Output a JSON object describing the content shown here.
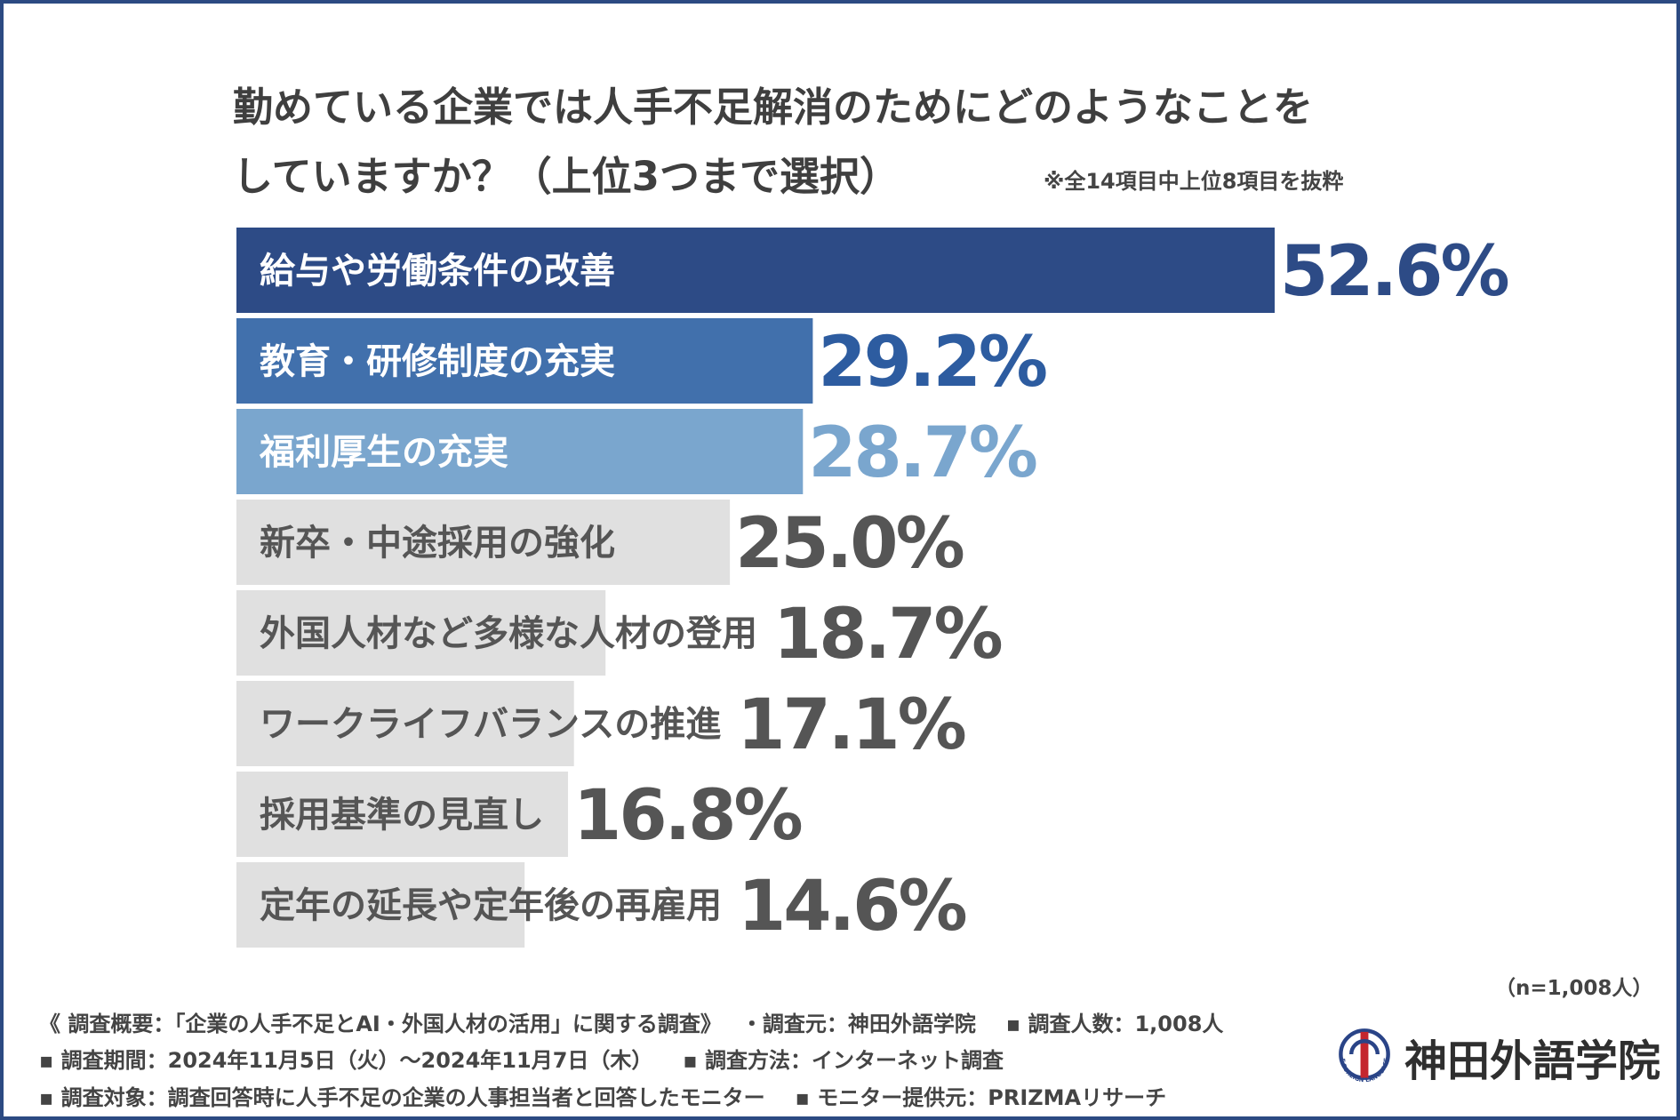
{
  "title": {
    "line1": "勤めている企業では人手不足解消のためにどのようなことを",
    "line2": "していますか？（上位3つまで選択）"
  },
  "note": "※全14項目中上位8項目を抜粋",
  "chart_data": {
    "type": "bar",
    "orientation": "horizontal",
    "title": "勤めている企業では人手不足解消のためにどのようなことをしていますか？（上位3つまで選択）",
    "categories": [
      "給与や労働条件の改善",
      "教育・研修制度の充実",
      "福利厚生の充実",
      "新卒・中途採用の強化",
      "外国人材など多様な人材の登用",
      "ワークライフバランスの推進",
      "採用基準の見直し",
      "定年の延長や定年後の再雇用"
    ],
    "values": [
      52.6,
      29.2,
      28.7,
      25.0,
      18.7,
      17.1,
      16.8,
      14.6
    ],
    "value_labels": [
      "52.6%",
      "29.2%",
      "28.7%",
      "25.0%",
      "18.7%",
      "17.1%",
      "16.8%",
      "14.6%"
    ],
    "unit": "%",
    "xlim": [
      0,
      52.6
    ],
    "bar_colors": [
      "#2d4b86",
      "#4170ac",
      "#7aa6ce",
      "#e0e0e0",
      "#e0e0e0",
      "#e0e0e0",
      "#e0e0e0",
      "#e0e0e0"
    ],
    "value_colors": [
      "#2d4b86",
      "#2d5ca0",
      "#7aa6ce",
      "#555555",
      "#555555",
      "#555555",
      "#555555",
      "#555555"
    ],
    "label_colors": [
      "#ffffff",
      "#ffffff",
      "#ffffff",
      "#555555",
      "#555555",
      "#555555",
      "#555555",
      "#555555"
    ]
  },
  "sample_size": "（n=1,008人）",
  "footer": {
    "line1": [
      "《 調査概要：「企業の人手不足とAI・外国人材の活用」に関する調査》",
      "・調査元：神田外語学院",
      "▪ 調査人数：1,008人"
    ],
    "line2": [
      "▪ 調査期間：2024年11月5日（火）～2024年11月7日（木）",
      "▪ 調査方法：インターネット調査"
    ],
    "line3": [
      "▪ 調査対象：調査回答時に人手不足の企業の人事担当者と回答したモニター",
      "▪ モニター提供元：PRIZMAリサーチ"
    ]
  },
  "logo": {
    "name": "神田外語学院",
    "ring_text": "OF FOREIGN LANGUAGES",
    "colors": {
      "blue": "#2a4487",
      "red": "#c4262e"
    }
  }
}
